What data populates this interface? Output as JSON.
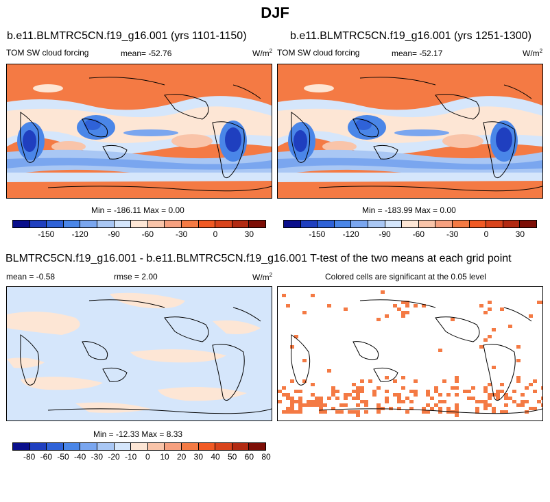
{
  "figure": {
    "season": "DJF",
    "top_row": [
      {
        "title": "b.e11.BLMTRC5CN.f19_g16.001 (yrs 1101-1150)",
        "variable": "TOM SW cloud forcing",
        "mean_label": "mean= -52.76",
        "units": "W/m",
        "units_exp": "2",
        "minmax": "Min = -186.11 Max =   0.00"
      },
      {
        "title": "b.e11.BLMTRC5CN.f19_g16.001 (yrs 1251-1300)",
        "variable": "TOM SW cloud forcing",
        "mean_label": "mean= -52.17",
        "units": "W/m",
        "units_exp": "2",
        "minmax": "Min = -183.99 Max =   0.00"
      }
    ],
    "diff": {
      "title": "BLMTRC5CN.f19_g16.001 - b.e11.BLMTRC5CN.f19_g16.001",
      "mean_label": "mean =  -0.58",
      "rmse_label": "rmse =  2.00",
      "units": "W/m",
      "units_exp": "2",
      "minmax": "Min = -12.33 Max =   8.33"
    },
    "ttest": {
      "title": "T-test of the two means at each grid point",
      "note": "Colored cells are significant at the 0.05 level",
      "color": "#f47a44"
    },
    "colorbar_main": {
      "colors": [
        "#0a0f8c",
        "#1f3fbf",
        "#2f62d8",
        "#4a86e8",
        "#7aa6ef",
        "#a9c7f4",
        "#d5e6fb",
        "#fde6d5",
        "#f9c4a9",
        "#f6a07f",
        "#f47a44",
        "#f15a24",
        "#d9441c",
        "#b22a12",
        "#7d0e06"
      ],
      "tick_labels": [
        "-150",
        "-120",
        "-90",
        "-60",
        "-30",
        "0",
        "30"
      ]
    },
    "colorbar_diff": {
      "colors": [
        "#0a0f8c",
        "#1f3fbf",
        "#2f62d8",
        "#4a86e8",
        "#7aa6ef",
        "#a9c7f4",
        "#d5e6fb",
        "#fde6d5",
        "#f9c4a9",
        "#f6a07f",
        "#f47a44",
        "#f15a24",
        "#d9441c",
        "#b22a12",
        "#7d0e06"
      ],
      "tick_labels": [
        "-80",
        "-60",
        "-50",
        "-40",
        "-30",
        "-20",
        "-10",
        "0",
        "10",
        "20",
        "30",
        "40",
        "50",
        "60",
        "80"
      ]
    }
  }
}
